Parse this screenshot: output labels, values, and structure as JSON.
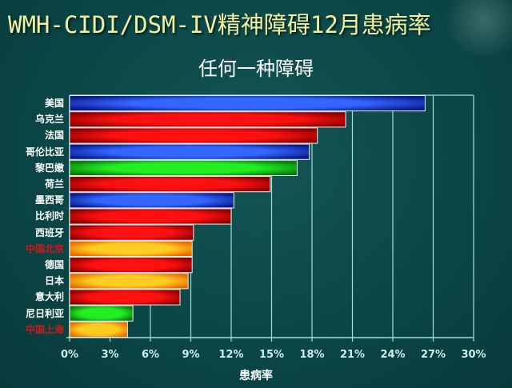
{
  "title": "WMH-CIDI/DSM-IV精神障碍12月患病率",
  "chart_data": {
    "type": "bar",
    "orientation": "horizontal",
    "title": "任何一种障碍",
    "xlabel": "患病率",
    "ylabel": "",
    "xlim": [
      0,
      30
    ],
    "xticks": [
      "0%",
      "3%",
      "6%",
      "9%",
      "12%",
      "15%",
      "18%",
      "21%",
      "24%",
      "27%",
      "30%"
    ],
    "grid": true,
    "categories": [
      "美国",
      "乌克兰",
      "法国",
      "哥伦比亚",
      "黎巴嫩",
      "荷兰",
      "墨西哥",
      "比利时",
      "西班牙",
      "中国北京",
      "德国",
      "日本",
      "意大利",
      "尼日利亚",
      "中国上海"
    ],
    "values": [
      26.4,
      20.5,
      18.4,
      17.8,
      16.9,
      14.9,
      12.2,
      12.0,
      9.2,
      9.1,
      9.1,
      8.8,
      8.2,
      4.7,
      4.3
    ],
    "bar_colors": [
      "blue",
      "red",
      "red",
      "blue",
      "green",
      "red",
      "blue",
      "red",
      "red",
      "orange",
      "red",
      "orange",
      "red",
      "green",
      "orange"
    ],
    "highlighted_categories": [
      "中国北京",
      "中国上海"
    ],
    "highlight_label_color": "#d01818"
  },
  "colors": {
    "blue": [
      "#0a1a8a",
      "#3366ff"
    ],
    "red": [
      "#8a0000",
      "#ff1010"
    ],
    "green": [
      "#0a7a0a",
      "#22ee22"
    ],
    "orange": [
      "#e86a00",
      "#ffcc22"
    ],
    "grid": "#9fe0e0",
    "background": "#0b4646"
  }
}
